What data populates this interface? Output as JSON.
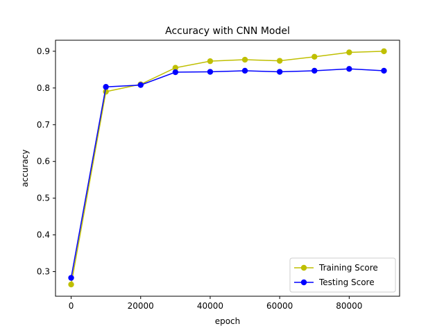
{
  "chart_data": {
    "type": "line",
    "title": "Accuracy with CNN Model",
    "xlabel": "epoch",
    "ylabel": "accuracy",
    "xlim": [
      -4500,
      94500
    ],
    "ylim": [
      0.233,
      0.93
    ],
    "xticks": [
      0,
      20000,
      40000,
      60000,
      80000
    ],
    "yticks": [
      0.3,
      0.4,
      0.5,
      0.6,
      0.7,
      0.8,
      0.9
    ],
    "grid": false,
    "legend_position": "lower-right",
    "x": [
      0,
      10000,
      20000,
      30000,
      40000,
      50000,
      60000,
      70000,
      80000,
      90000
    ],
    "series": [
      {
        "name": "Training Score",
        "color": "#bfbf00",
        "values": [
          0.265,
          0.79,
          0.81,
          0.855,
          0.873,
          0.877,
          0.874,
          0.885,
          0.897,
          0.9
        ]
      },
      {
        "name": "Testing Score",
        "color": "#0000ff",
        "values": [
          0.283,
          0.803,
          0.808,
          0.843,
          0.844,
          0.847,
          0.844,
          0.847,
          0.852,
          0.847
        ]
      }
    ]
  }
}
